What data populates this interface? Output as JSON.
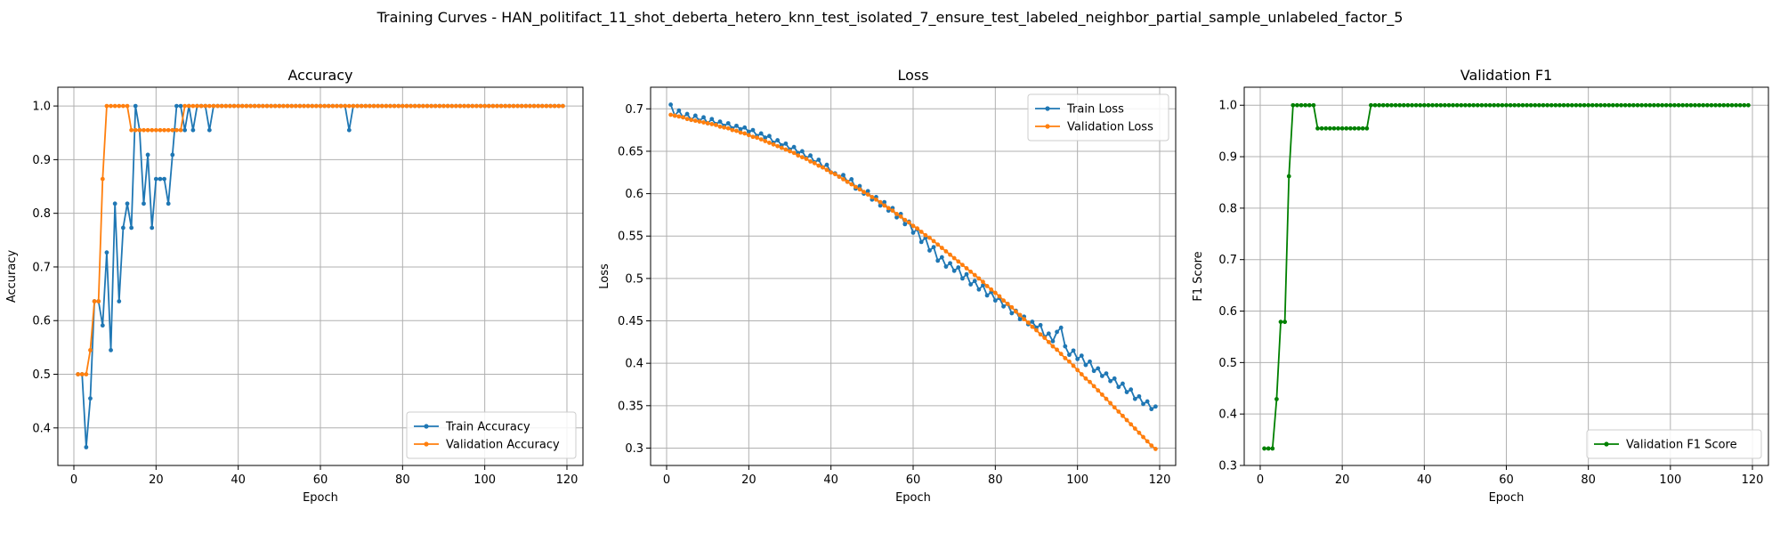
{
  "figure": {
    "title": "Training Curves - HAN_politifact_11_shot_deberta_hetero_knn_test_isolated_7_ensure_test_labeled_neighbor_partial_sample_unlabeled_factor_5"
  },
  "colors": {
    "blue": "#1f77b4",
    "orange": "#ff7f0e",
    "green": "#008000",
    "grid": "#b0b0b0"
  },
  "chart_data": [
    {
      "type": "line",
      "title": "Accuracy",
      "xlabel": "Epoch",
      "ylabel": "Accuracy",
      "xlim": [
        -3.9,
        123.9
      ],
      "ylim": [
        0.33,
        1.035
      ],
      "xticks": [
        0,
        20,
        40,
        60,
        80,
        100,
        120
      ],
      "yticks": [
        0.4,
        0.5,
        0.6,
        0.7,
        0.8,
        0.9,
        1.0
      ],
      "grid": true,
      "legend_position": "lower right",
      "series": [
        {
          "name": "Train Accuracy",
          "color": "#1f77b4",
          "x_start": 1,
          "values": [
            0.5,
            0.5,
            0.364,
            0.455,
            0.636,
            0.636,
            0.591,
            0.727,
            0.545,
            0.818,
            0.636,
            0.773,
            0.818,
            0.773,
            1.0,
            0.955,
            0.818,
            0.909,
            0.773,
            0.864,
            0.864,
            0.864,
            0.818,
            0.909,
            1.0,
            1.0,
            0.955,
            1.0,
            0.955,
            1.0,
            1.0,
            1.0,
            0.955,
            1.0,
            1.0,
            1.0,
            1.0,
            1.0,
            1.0,
            1.0,
            1.0,
            1.0,
            1.0,
            1.0,
            1.0,
            1.0,
            1.0,
            1.0,
            1.0,
            1.0,
            1.0,
            1.0,
            1.0,
            1.0,
            1.0,
            1.0,
            1.0,
            1.0,
            1.0,
            1.0,
            1.0,
            1.0,
            1.0,
            1.0,
            1.0,
            1.0,
            0.955,
            1.0,
            1.0,
            1.0,
            1.0,
            1.0,
            1.0,
            1.0,
            1.0,
            1.0,
            1.0,
            1.0,
            1.0,
            1.0,
            1.0,
            1.0,
            1.0,
            1.0,
            1.0,
            1.0,
            1.0,
            1.0,
            1.0,
            1.0,
            1.0,
            1.0,
            1.0,
            1.0,
            1.0,
            1.0,
            1.0,
            1.0,
            1.0,
            1.0,
            1.0,
            1.0,
            1.0,
            1.0,
            1.0,
            1.0,
            1.0,
            1.0,
            1.0,
            1.0,
            1.0,
            1.0,
            1.0,
            1.0,
            1.0,
            1.0,
            1.0,
            1.0,
            1.0
          ]
        },
        {
          "name": "Validation Accuracy",
          "color": "#ff7f0e",
          "x_start": 1,
          "values": [
            0.5,
            0.5,
            0.5,
            0.545,
            0.636,
            0.636,
            0.864,
            1.0,
            1.0,
            1.0,
            1.0,
            1.0,
            1.0,
            0.955,
            0.955,
            0.955,
            0.955,
            0.955,
            0.955,
            0.955,
            0.955,
            0.955,
            0.955,
            0.955,
            0.955,
            0.955,
            1.0,
            1.0,
            1.0,
            1.0,
            1.0,
            1.0,
            1.0,
            1.0,
            1.0,
            1.0,
            1.0,
            1.0,
            1.0,
            1.0,
            1.0,
            1.0,
            1.0,
            1.0,
            1.0,
            1.0,
            1.0,
            1.0,
            1.0,
            1.0,
            1.0,
            1.0,
            1.0,
            1.0,
            1.0,
            1.0,
            1.0,
            1.0,
            1.0,
            1.0,
            1.0,
            1.0,
            1.0,
            1.0,
            1.0,
            1.0,
            1.0,
            1.0,
            1.0,
            1.0,
            1.0,
            1.0,
            1.0,
            1.0,
            1.0,
            1.0,
            1.0,
            1.0,
            1.0,
            1.0,
            1.0,
            1.0,
            1.0,
            1.0,
            1.0,
            1.0,
            1.0,
            1.0,
            1.0,
            1.0,
            1.0,
            1.0,
            1.0,
            1.0,
            1.0,
            1.0,
            1.0,
            1.0,
            1.0,
            1.0,
            1.0,
            1.0,
            1.0,
            1.0,
            1.0,
            1.0,
            1.0,
            1.0,
            1.0,
            1.0,
            1.0,
            1.0,
            1.0,
            1.0,
            1.0,
            1.0,
            1.0,
            1.0,
            1.0
          ]
        }
      ]
    },
    {
      "type": "line",
      "title": "Loss",
      "xlabel": "Epoch",
      "ylabel": "Loss",
      "xlim": [
        -3.9,
        123.9
      ],
      "ylim": [
        0.2795,
        0.7255
      ],
      "xticks": [
        0,
        20,
        40,
        60,
        80,
        100,
        120
      ],
      "yticks": [
        0.3,
        0.35,
        0.4,
        0.45,
        0.5,
        0.55,
        0.6,
        0.65,
        0.7
      ],
      "grid": true,
      "legend_position": "upper right",
      "series": [
        {
          "name": "Train Loss",
          "color": "#1f77b4",
          "x_start": 1,
          "values": [
            0.705,
            0.692,
            0.698,
            0.69,
            0.694,
            0.687,
            0.692,
            0.686,
            0.69,
            0.683,
            0.688,
            0.682,
            0.685,
            0.68,
            0.683,
            0.677,
            0.68,
            0.676,
            0.678,
            0.673,
            0.675,
            0.668,
            0.671,
            0.666,
            0.668,
            0.66,
            0.663,
            0.657,
            0.659,
            0.652,
            0.655,
            0.648,
            0.65,
            0.642,
            0.645,
            0.637,
            0.64,
            0.631,
            0.634,
            0.625,
            0.624,
            0.62,
            0.622,
            0.614,
            0.617,
            0.606,
            0.609,
            0.6,
            0.603,
            0.593,
            0.596,
            0.586,
            0.59,
            0.58,
            0.583,
            0.572,
            0.576,
            0.564,
            0.567,
            0.554,
            0.558,
            0.543,
            0.548,
            0.533,
            0.537,
            0.521,
            0.525,
            0.514,
            0.518,
            0.509,
            0.513,
            0.5,
            0.505,
            0.493,
            0.497,
            0.487,
            0.492,
            0.48,
            0.484,
            0.474,
            0.477,
            0.467,
            0.47,
            0.459,
            0.462,
            0.452,
            0.455,
            0.446,
            0.449,
            0.442,
            0.445,
            0.431,
            0.435,
            0.426,
            0.437,
            0.442,
            0.42,
            0.41,
            0.415,
            0.405,
            0.409,
            0.398,
            0.402,
            0.391,
            0.394,
            0.385,
            0.388,
            0.379,
            0.382,
            0.372,
            0.376,
            0.366,
            0.369,
            0.358,
            0.361,
            0.352,
            0.355,
            0.346,
            0.349
          ]
        },
        {
          "name": "Validation Loss",
          "color": "#ff7f0e",
          "x_start": 1,
          "values": [
            0.693,
            0.692,
            0.691,
            0.69,
            0.688,
            0.687,
            0.686,
            0.685,
            0.684,
            0.683,
            0.682,
            0.681,
            0.679,
            0.678,
            0.677,
            0.675,
            0.674,
            0.672,
            0.671,
            0.669,
            0.667,
            0.666,
            0.664,
            0.662,
            0.66,
            0.658,
            0.656,
            0.654,
            0.652,
            0.65,
            0.648,
            0.645,
            0.643,
            0.641,
            0.638,
            0.636,
            0.633,
            0.631,
            0.628,
            0.625,
            0.623,
            0.62,
            0.617,
            0.614,
            0.611,
            0.608,
            0.605,
            0.602,
            0.599,
            0.596,
            0.593,
            0.59,
            0.586,
            0.583,
            0.58,
            0.576,
            0.573,
            0.569,
            0.566,
            0.562,
            0.559,
            0.555,
            0.551,
            0.548,
            0.544,
            0.54,
            0.536,
            0.532,
            0.528,
            0.524,
            0.52,
            0.516,
            0.512,
            0.508,
            0.504,
            0.5,
            0.496,
            0.491,
            0.487,
            0.483,
            0.479,
            0.474,
            0.47,
            0.466,
            0.461,
            0.457,
            0.452,
            0.448,
            0.443,
            0.439,
            0.434,
            0.43,
            0.425,
            0.42,
            0.416,
            0.411,
            0.406,
            0.402,
            0.397,
            0.392,
            0.387,
            0.382,
            0.378,
            0.373,
            0.368,
            0.363,
            0.358,
            0.353,
            0.348,
            0.343,
            0.338,
            0.333,
            0.328,
            0.323,
            0.318,
            0.313,
            0.308,
            0.303,
            0.299
          ]
        }
      ]
    },
    {
      "type": "line",
      "title": "Validation F1",
      "xlabel": "Epoch",
      "ylabel": "F1 Score",
      "xlim": [
        -3.9,
        123.9
      ],
      "ylim": [
        0.3,
        1.035
      ],
      "xticks": [
        0,
        20,
        40,
        60,
        80,
        100,
        120
      ],
      "yticks": [
        0.3,
        0.4,
        0.5,
        0.6,
        0.7,
        0.8,
        0.9,
        1.0
      ],
      "grid": true,
      "legend_position": "lower right",
      "series": [
        {
          "name": "Validation F1 Score",
          "color": "#008000",
          "x_start": 1,
          "values": [
            0.333,
            0.333,
            0.333,
            0.429,
            0.579,
            0.579,
            0.862,
            1.0,
            1.0,
            1.0,
            1.0,
            1.0,
            1.0,
            0.955,
            0.955,
            0.955,
            0.955,
            0.955,
            0.955,
            0.955,
            0.955,
            0.955,
            0.955,
            0.955,
            0.955,
            0.955,
            1.0,
            1.0,
            1.0,
            1.0,
            1.0,
            1.0,
            1.0,
            1.0,
            1.0,
            1.0,
            1.0,
            1.0,
            1.0,
            1.0,
            1.0,
            1.0,
            1.0,
            1.0,
            1.0,
            1.0,
            1.0,
            1.0,
            1.0,
            1.0,
            1.0,
            1.0,
            1.0,
            1.0,
            1.0,
            1.0,
            1.0,
            1.0,
            1.0,
            1.0,
            1.0,
            1.0,
            1.0,
            1.0,
            1.0,
            1.0,
            1.0,
            1.0,
            1.0,
            1.0,
            1.0,
            1.0,
            1.0,
            1.0,
            1.0,
            1.0,
            1.0,
            1.0,
            1.0,
            1.0,
            1.0,
            1.0,
            1.0,
            1.0,
            1.0,
            1.0,
            1.0,
            1.0,
            1.0,
            1.0,
            1.0,
            1.0,
            1.0,
            1.0,
            1.0,
            1.0,
            1.0,
            1.0,
            1.0,
            1.0,
            1.0,
            1.0,
            1.0,
            1.0,
            1.0,
            1.0,
            1.0,
            1.0,
            1.0,
            1.0,
            1.0,
            1.0,
            1.0,
            1.0,
            1.0,
            1.0,
            1.0,
            1.0,
            1.0
          ]
        }
      ]
    }
  ]
}
